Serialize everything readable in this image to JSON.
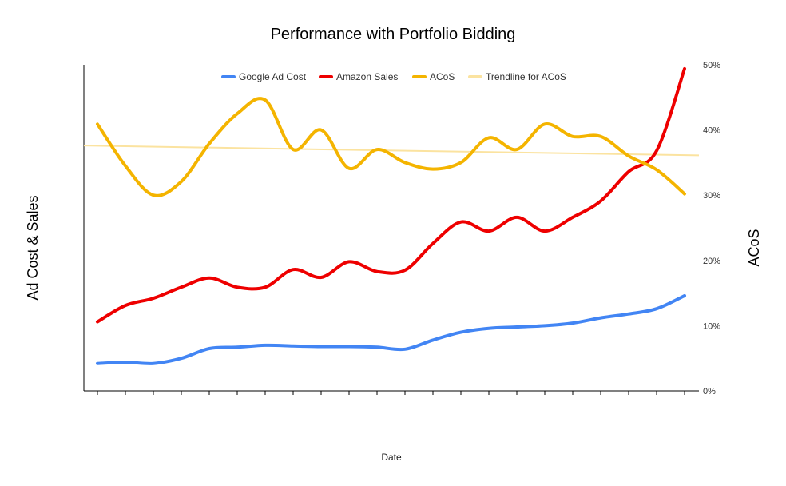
{
  "chart_data": {
    "type": "line",
    "title": "Performance with Portfolio Bidding",
    "xlabel": "Date",
    "ylabel_left": "Ad Cost & Sales",
    "ylabel_right": "ACoS",
    "right_axis": {
      "ticks": [
        "0%",
        "10%",
        "20%",
        "30%",
        "40%",
        "50%"
      ],
      "tick_values": [
        0,
        10,
        20,
        30,
        40,
        50
      ],
      "ylim": [
        0,
        50
      ]
    },
    "left_axis_ticks_shown": false,
    "x_tick_count": 22,
    "legend_position": "top",
    "series": [
      {
        "name": "Google Ad Cost",
        "color": "#4285F4",
        "axis": "right",
        "values": [
          4.2,
          4.4,
          4.2,
          5.0,
          6.5,
          6.7,
          7.0,
          6.9,
          6.8,
          6.8,
          6.7,
          6.4,
          7.8,
          9.0,
          9.6,
          9.8,
          10.0,
          10.4,
          11.2,
          11.8,
          12.6,
          14.6
        ]
      },
      {
        "name": "Amazon Sales",
        "color": "#EE0000",
        "axis": "right",
        "values": [
          10.6,
          13.1,
          14.2,
          15.9,
          17.3,
          15.9,
          15.9,
          18.6,
          17.4,
          19.8,
          18.3,
          18.5,
          22.6,
          25.9,
          24.5,
          26.6,
          24.5,
          26.6,
          29.1,
          33.6,
          36.8,
          49.4
        ]
      },
      {
        "name": "ACoS",
        "color": "#F4B400",
        "axis": "right",
        "values": [
          40.9,
          34.5,
          30.0,
          32.1,
          37.9,
          42.5,
          44.6,
          37.0,
          40.0,
          34.1,
          37.0,
          35.0,
          34.0,
          35.0,
          38.8,
          37.0,
          40.9,
          39.0,
          39.0,
          36.0,
          33.9,
          30.2
        ]
      },
      {
        "name": "Trendline for ACoS",
        "color": "#FBE3A0",
        "axis": "right",
        "trend_start": 37.6,
        "trend_end": 36.1
      }
    ]
  }
}
